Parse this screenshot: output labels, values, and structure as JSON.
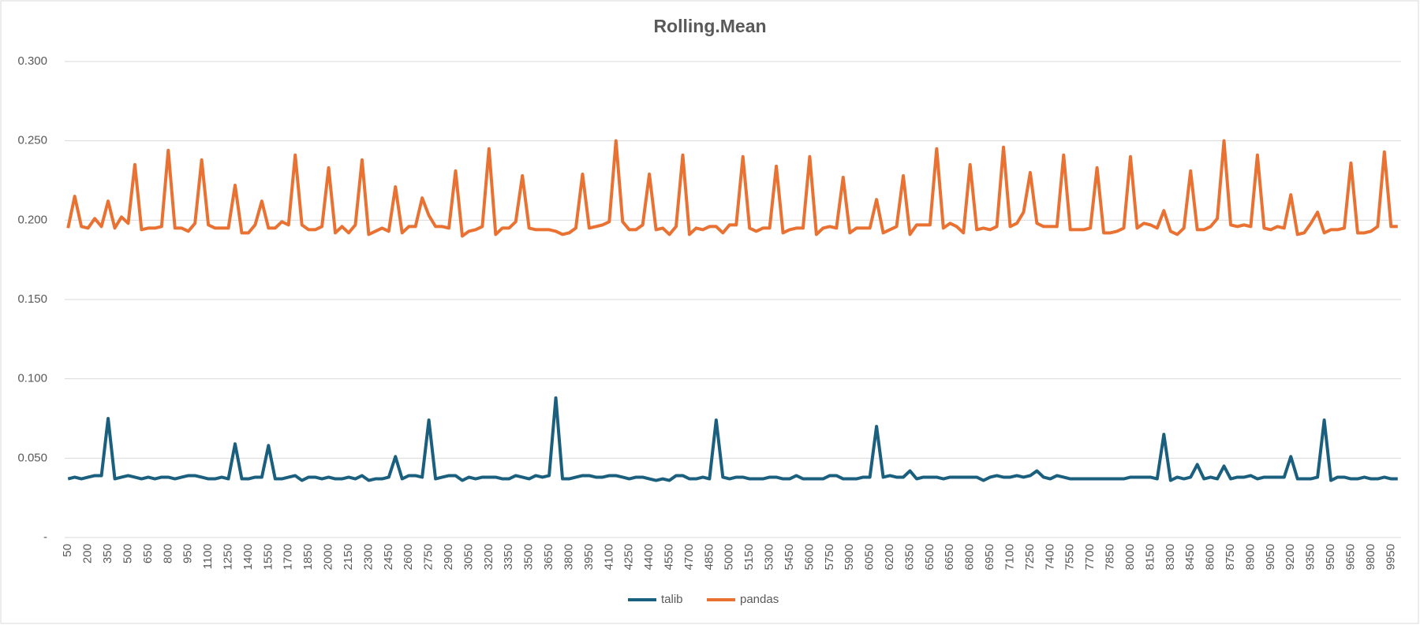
{
  "chart_data": {
    "type": "line",
    "title": "Rolling.Mean",
    "categories": [
      50,
      null,
      null,
      200,
      null,
      null,
      350,
      null,
      null,
      500,
      null,
      null,
      650,
      null,
      null,
      800,
      null,
      null,
      950,
      null,
      null,
      1100,
      null,
      null,
      1250,
      null,
      null,
      1400,
      null,
      null,
      1550,
      null,
      null,
      1700,
      null,
      null,
      1850,
      null,
      null,
      2000,
      null,
      null,
      2150,
      null,
      null,
      2300,
      null,
      null,
      2450,
      null,
      null,
      2600,
      null,
      null,
      2750,
      null,
      null,
      2900,
      null,
      null,
      3050,
      null,
      null,
      3200,
      null,
      null,
      3350,
      null,
      null,
      3500,
      null,
      null,
      3650,
      null,
      null,
      3800,
      null,
      null,
      3950,
      null,
      null,
      4100,
      null,
      null,
      4250,
      null,
      null,
      4400,
      null,
      null,
      4550,
      null,
      null,
      4700,
      null,
      null,
      4850,
      null,
      null,
      5000,
      null,
      null,
      5150,
      null,
      null,
      5300,
      null,
      null,
      5450,
      null,
      null,
      5600,
      null,
      null,
      5750,
      null,
      null,
      5900,
      null,
      null,
      6050,
      null,
      null,
      6200,
      null,
      null,
      6350,
      null,
      null,
      6500,
      null,
      null,
      6650,
      null,
      null,
      6800,
      null,
      null,
      6950,
      null,
      null,
      7100,
      null,
      null,
      7250,
      null,
      null,
      7400,
      null,
      null,
      7550,
      null,
      null,
      7700,
      null,
      null,
      7850,
      null,
      null,
      8000,
      null,
      null,
      8150,
      null,
      null,
      8300,
      null,
      null,
      8450,
      null,
      null,
      8600,
      null,
      null,
      8750,
      null,
      null,
      8900,
      null,
      null,
      9050,
      null,
      null,
      9200,
      null,
      null,
      9350,
      null,
      null,
      9500,
      null,
      null,
      9650,
      null,
      null,
      9800,
      null,
      null,
      9950,
      null
    ],
    "series": [
      {
        "name": "talib",
        "color": "#1b5f7f",
        "values": [
          0.037,
          0.038,
          0.037,
          0.038,
          0.039,
          0.039,
          0.075,
          0.037,
          0.038,
          0.039,
          0.038,
          0.037,
          0.038,
          0.037,
          0.038,
          0.038,
          0.037,
          0.038,
          0.039,
          0.039,
          0.038,
          0.037,
          0.037,
          0.038,
          0.037,
          0.059,
          0.037,
          0.037,
          0.038,
          0.038,
          0.058,
          0.037,
          0.037,
          0.038,
          0.039,
          0.036,
          0.038,
          0.038,
          0.037,
          0.038,
          0.037,
          0.037,
          0.038,
          0.037,
          0.039,
          0.036,
          0.037,
          0.037,
          0.038,
          0.051,
          0.037,
          0.039,
          0.039,
          0.038,
          0.074,
          0.037,
          0.038,
          0.039,
          0.039,
          0.036,
          0.038,
          0.037,
          0.038,
          0.038,
          0.038,
          0.037,
          0.037,
          0.039,
          0.038,
          0.037,
          0.039,
          0.038,
          0.039,
          0.088,
          0.037,
          0.037,
          0.038,
          0.039,
          0.039,
          0.038,
          0.038,
          0.039,
          0.039,
          0.038,
          0.037,
          0.038,
          0.038,
          0.037,
          0.036,
          0.037,
          0.036,
          0.039,
          0.039,
          0.037,
          0.037,
          0.038,
          0.037,
          0.074,
          0.038,
          0.037,
          0.038,
          0.038,
          0.037,
          0.037,
          0.037,
          0.038,
          0.038,
          0.037,
          0.037,
          0.039,
          0.037,
          0.037,
          0.037,
          0.037,
          0.039,
          0.039,
          0.037,
          0.037,
          0.037,
          0.038,
          0.038,
          0.07,
          0.038,
          0.039,
          0.038,
          0.038,
          0.042,
          0.037,
          0.038,
          0.038,
          0.038,
          0.037,
          0.038,
          0.038,
          0.038,
          0.038,
          0.038,
          0.036,
          0.038,
          0.039,
          0.038,
          0.038,
          0.039,
          0.038,
          0.039,
          0.042,
          0.038,
          0.037,
          0.039,
          0.038,
          0.037,
          0.037,
          0.037,
          0.037,
          0.037,
          0.037,
          0.037,
          0.037,
          0.037,
          0.038,
          0.038,
          0.038,
          0.038,
          0.037,
          0.065,
          0.036,
          0.038,
          0.037,
          0.038,
          0.046,
          0.037,
          0.038,
          0.037,
          0.045,
          0.037,
          0.038,
          0.038,
          0.039,
          0.037,
          0.038,
          0.038,
          0.038,
          0.038,
          0.051,
          0.037,
          0.037,
          0.037,
          0.038,
          0.074,
          0.036,
          0.038,
          0.038,
          0.037,
          0.037,
          0.038,
          0.037,
          0.037,
          0.038,
          0.037,
          0.037
        ]
      },
      {
        "name": "pandas",
        "color": "#e97132",
        "values": [
          0.195,
          0.215,
          0.196,
          0.195,
          0.201,
          0.196,
          0.212,
          0.195,
          0.202,
          0.198,
          0.235,
          0.194,
          0.195,
          0.195,
          0.196,
          0.244,
          0.195,
          0.195,
          0.193,
          0.198,
          0.238,
          0.197,
          0.195,
          0.195,
          0.195,
          0.222,
          0.192,
          0.192,
          0.197,
          0.212,
          0.195,
          0.195,
          0.199,
          0.197,
          0.241,
          0.197,
          0.194,
          0.194,
          0.196,
          0.233,
          0.192,
          0.196,
          0.192,
          0.197,
          0.238,
          0.191,
          0.193,
          0.195,
          0.193,
          0.221,
          0.192,
          0.196,
          0.196,
          0.214,
          0.203,
          0.196,
          0.196,
          0.195,
          0.231,
          0.19,
          0.193,
          0.194,
          0.196,
          0.245,
          0.191,
          0.195,
          0.195,
          0.199,
          0.228,
          0.195,
          0.194,
          0.194,
          0.194,
          0.193,
          0.191,
          0.192,
          0.195,
          0.229,
          0.195,
          0.196,
          0.197,
          0.199,
          0.25,
          0.199,
          0.194,
          0.194,
          0.197,
          0.229,
          0.194,
          0.195,
          0.191,
          0.196,
          0.241,
          0.191,
          0.195,
          0.194,
          0.196,
          0.196,
          0.192,
          0.197,
          0.197,
          0.24,
          0.195,
          0.193,
          0.195,
          0.195,
          0.234,
          0.192,
          0.194,
          0.195,
          0.195,
          0.24,
          0.191,
          0.195,
          0.196,
          0.195,
          0.227,
          0.192,
          0.195,
          0.195,
          0.195,
          0.213,
          0.192,
          0.194,
          0.196,
          0.228,
          0.191,
          0.197,
          0.197,
          0.197,
          0.245,
          0.195,
          0.198,
          0.196,
          0.192,
          0.235,
          0.194,
          0.195,
          0.194,
          0.196,
          0.246,
          0.196,
          0.198,
          0.205,
          0.23,
          0.198,
          0.196,
          0.196,
          0.196,
          0.241,
          0.194,
          0.194,
          0.194,
          0.195,
          0.233,
          0.192,
          0.192,
          0.193,
          0.195,
          0.24,
          0.195,
          0.198,
          0.197,
          0.195,
          0.206,
          0.193,
          0.191,
          0.195,
          0.231,
          0.194,
          0.194,
          0.196,
          0.201,
          0.25,
          0.197,
          0.196,
          0.197,
          0.196,
          0.241,
          0.195,
          0.194,
          0.196,
          0.195,
          0.216,
          0.191,
          0.192,
          0.198,
          0.205,
          0.192,
          0.194,
          0.194,
          0.195,
          0.236,
          0.192,
          0.192,
          0.193,
          0.196,
          0.243,
          0.196,
          0.196
        ]
      }
    ],
    "ylim": [
      0,
      0.3
    ],
    "yticks": [
      {
        "value": 0,
        "label": "-"
      },
      {
        "value": 0.05,
        "label": "0.050"
      },
      {
        "value": 0.1,
        "label": "0.100"
      },
      {
        "value": 0.15,
        "label": "0.150"
      },
      {
        "value": 0.2,
        "label": "0.200"
      },
      {
        "value": 0.25,
        "label": "0.250"
      },
      {
        "value": 0.3,
        "label": "0.300"
      }
    ],
    "grid": true,
    "legend": "bottom"
  }
}
